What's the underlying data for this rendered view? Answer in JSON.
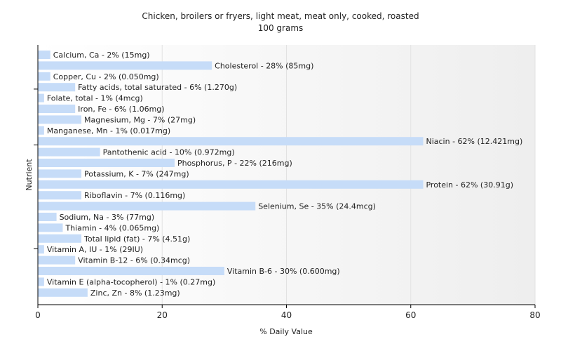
{
  "chart_data": {
    "type": "bar",
    "orientation": "horizontal",
    "title": "Chicken, broilers or fryers, light meat, meat only, cooked, roasted",
    "subtitle": "100 grams",
    "xlabel": "% Daily Value",
    "ylabel": "Nutrient",
    "xlim": [
      0,
      80
    ],
    "xticks": [
      0,
      20,
      40,
      60,
      80
    ],
    "grid": true,
    "legend": "none",
    "bar_color": "#c6dcf8",
    "categories": [
      "Calcium, Ca",
      "Cholesterol",
      "Copper, Cu",
      "Fatty acids, total saturated",
      "Folate, total",
      "Iron, Fe",
      "Magnesium, Mg",
      "Manganese, Mn",
      "Niacin",
      "Pantothenic acid",
      "Phosphorus, P",
      "Potassium, K",
      "Protein",
      "Riboflavin",
      "Selenium, Se",
      "Sodium, Na",
      "Thiamin",
      "Total lipid (fat)",
      "Vitamin A, IU",
      "Vitamin B-12",
      "Vitamin B-6",
      "Vitamin E (alpha-tocopherol)",
      "Zinc, Zn"
    ],
    "values": [
      2,
      28,
      2,
      6,
      1,
      6,
      7,
      1,
      62,
      10,
      22,
      7,
      62,
      7,
      35,
      3,
      4,
      7,
      1,
      6,
      30,
      1,
      8
    ],
    "labels": [
      "Calcium, Ca - 2% (15mg)",
      "Cholesterol - 28% (85mg)",
      "Copper, Cu - 2% (0.050mg)",
      "Fatty acids, total saturated - 6% (1.270g)",
      "Folate, total - 1% (4mcg)",
      "Iron, Fe - 6% (1.06mg)",
      "Magnesium, Mg - 7% (27mg)",
      "Manganese, Mn - 1% (0.017mg)",
      "Niacin - 62% (12.421mg)",
      "Pantothenic acid - 10% (0.972mg)",
      "Phosphorus, P - 22% (216mg)",
      "Potassium, K - 7% (247mg)",
      "Protein - 62% (30.91g)",
      "Riboflavin - 7% (0.116mg)",
      "Selenium, Se - 35% (24.4mcg)",
      "Sodium, Na - 3% (77mg)",
      "Thiamin - 4% (0.065mg)",
      "Total lipid (fat) - 7% (4.51g)",
      "Vitamin A, IU - 1% (29IU)",
      "Vitamin B-12 - 6% (0.34mcg)",
      "Vitamin B-6 - 30% (0.600mg)",
      "Vitamin E (alpha-tocopherol) - 1% (0.27mg)",
      "Zinc, Zn - 8% (1.23mg)"
    ]
  }
}
